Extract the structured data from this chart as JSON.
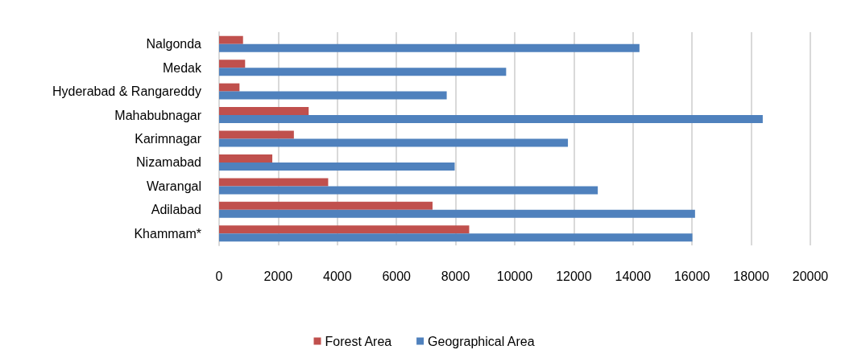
{
  "chart_data": {
    "type": "bar",
    "orientation": "horizontal",
    "categories": [
      "Nalgonda",
      "Medak",
      "Hyderabad & Rangareddy",
      "Mahabubnagar",
      "Karimnagar",
      "Nizamabad",
      "Warangal",
      "Adilabad",
      "Khammam*"
    ],
    "series": [
      {
        "name": "Forest Area",
        "color": "#c0504d",
        "values": [
          810,
          880,
          690,
          3030,
          2530,
          1800,
          3690,
          7220,
          8460
        ]
      },
      {
        "name": "Geographical Area",
        "color": "#4f81bd",
        "values": [
          14220,
          9710,
          7700,
          18390,
          11800,
          7970,
          12810,
          16100,
          16010
        ]
      }
    ],
    "xlim": [
      0,
      20000
    ],
    "xticks": [
      0,
      2000,
      4000,
      6000,
      8000,
      10000,
      12000,
      14000,
      16000,
      18000,
      20000
    ],
    "grid": "x",
    "legend": "bottom"
  }
}
